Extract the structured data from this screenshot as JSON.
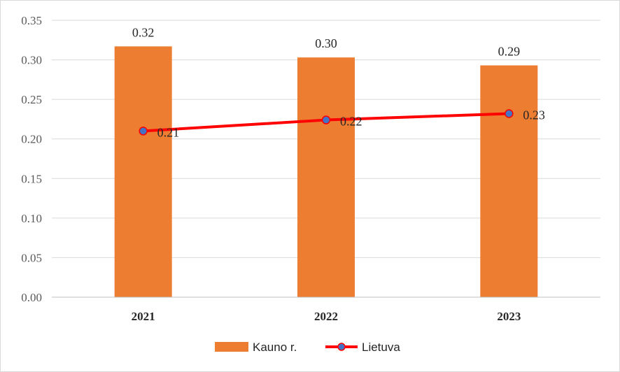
{
  "chart_data": {
    "type": "bar",
    "categories": [
      "2021",
      "2022",
      "2023"
    ],
    "series": [
      {
        "name": "Kauno r.",
        "kind": "bar",
        "color": "#ED7D31",
        "values": [
          0.317,
          0.303,
          0.293
        ],
        "labels": [
          "0.32",
          "0.30",
          "0.29"
        ]
      },
      {
        "name": "Lietuva",
        "kind": "line",
        "color": "#FF0000",
        "marker_color": "#4472C4",
        "values": [
          0.21,
          0.224,
          0.232
        ],
        "labels": [
          "0.21",
          "0.22",
          "0.23"
        ]
      }
    ],
    "ylim": [
      0,
      0.35
    ],
    "yticks": [
      "0.00",
      "0.05",
      "0.10",
      "0.15",
      "0.20",
      "0.25",
      "0.30",
      "0.35"
    ],
    "grid": true,
    "legend_position": "bottom"
  }
}
